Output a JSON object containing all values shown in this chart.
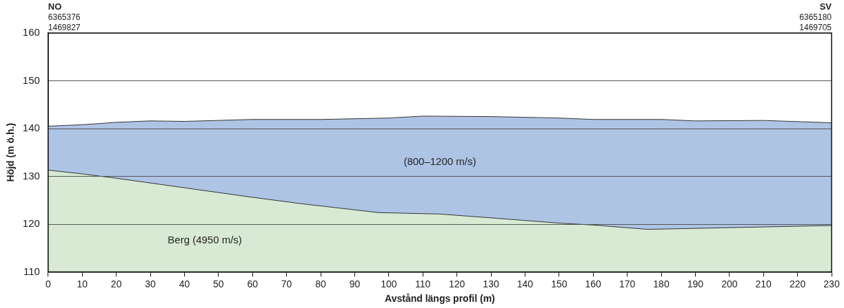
{
  "chart_data": {
    "type": "area",
    "xlabel": "Avstånd längs profil (m)",
    "ylabel": "Höjd (m ö.h.)",
    "xlim": [
      0,
      230
    ],
    "xticks": [
      0,
      10,
      20,
      30,
      40,
      50,
      60,
      70,
      80,
      90,
      100,
      110,
      120,
      130,
      140,
      150,
      160,
      170,
      180,
      190,
      200,
      210,
      220,
      230
    ],
    "ylim": [
      110,
      160
    ],
    "yticks": [
      110,
      120,
      130,
      140,
      150,
      160
    ],
    "grid": "y",
    "legend": false,
    "series": [
      {
        "color": "#aec4e5",
        "x": [
          0,
          10,
          20,
          30,
          40,
          60,
          80,
          100,
          110,
          130,
          150,
          160,
          180,
          190,
          210,
          230
        ],
        "values": [
          140.5,
          140.8,
          141.3,
          141.6,
          141.5,
          141.9,
          141.9,
          142.2,
          142.6,
          142.5,
          142.2,
          141.9,
          141.9,
          141.6,
          141.7,
          141.2
        ]
      },
      {
        "color": "#d8ead4",
        "x": [
          0,
          10,
          20,
          30,
          40,
          60,
          75,
          80,
          97,
          115,
          130,
          150,
          160,
          176,
          190,
          210,
          230
        ],
        "values": [
          131.3,
          130.5,
          129.6,
          128.6,
          127.6,
          125.6,
          124.2,
          123.8,
          122.4,
          122.1,
          121.3,
          120.2,
          119.8,
          118.9,
          119.1,
          119.4,
          119.7
        ]
      }
    ],
    "annotations": [
      "(800–1200 m/s)",
      "Berg (4950 m/s)",
      "NO",
      "6365376",
      "1469827",
      "SV",
      "6365180",
      "1469705"
    ]
  }
}
